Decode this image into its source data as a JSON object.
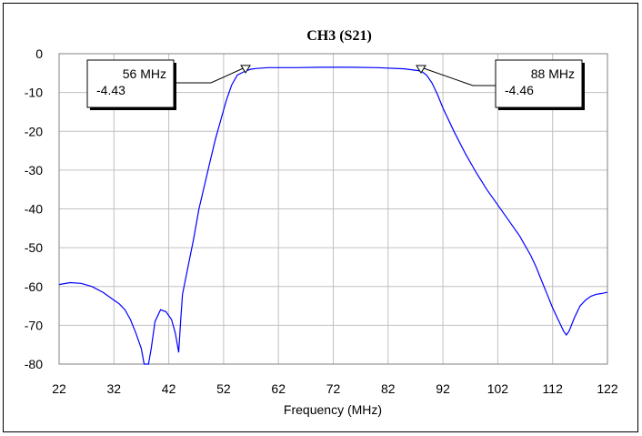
{
  "chart_data": {
    "type": "line",
    "title": "CH3 (S21)",
    "xlabel": "Frequency (MHz)",
    "ylabel": "",
    "xlim": [
      22,
      122
    ],
    "ylim": [
      -80,
      0
    ],
    "grid": true,
    "xticks": [
      "22",
      "32",
      "42",
      "52",
      "62",
      "72",
      "82",
      "92",
      "102",
      "112",
      "122"
    ],
    "yticks": [
      "0",
      "-10",
      "-20",
      "-30",
      "-40",
      "-50",
      "-60",
      "-70",
      "-80"
    ],
    "series": [
      {
        "color": "#0000ff",
        "x": [
          22,
          24,
          26,
          28,
          30,
          32,
          33,
          34,
          35,
          36,
          37,
          37.5,
          38,
          38.3,
          38.8,
          39.5,
          40.5,
          41.5,
          42.5,
          43.2,
          43.8,
          44.2,
          44.5,
          45.5,
          46.5,
          47.5,
          48.5,
          49.5,
          50.5,
          51.5,
          52.5,
          53.5,
          54.5,
          55.5,
          56,
          57,
          58,
          59,
          60,
          62,
          65,
          70,
          75,
          80,
          85,
          88,
          89,
          90,
          91,
          92,
          94,
          96,
          98,
          100,
          102,
          104,
          106,
          108,
          109,
          110,
          111,
          112,
          113,
          114,
          114.5,
          115,
          116,
          117,
          118,
          119,
          120,
          121,
          122
        ],
        "values": [
          -59.5,
          -59,
          -59.2,
          -60,
          -61.5,
          -63.5,
          -64.5,
          -66,
          -68.5,
          -72,
          -76,
          -80,
          -80,
          -80,
          -76,
          -69,
          -66,
          -66.5,
          -68.5,
          -72,
          -77,
          -68,
          -62,
          -55,
          -48,
          -40,
          -34,
          -28,
          -22,
          -17,
          -12,
          -8,
          -5.5,
          -4.8,
          -4.43,
          -4,
          -3.8,
          -3.7,
          -3.6,
          -3.6,
          -3.6,
          -3.5,
          -3.5,
          -3.6,
          -3.9,
          -4.46,
          -5.5,
          -7.5,
          -10.5,
          -14,
          -20,
          -25.5,
          -30.5,
          -35,
          -39,
          -43,
          -47,
          -52,
          -55,
          -58.5,
          -62,
          -65.5,
          -68.5,
          -71.5,
          -72.5,
          -71.5,
          -68,
          -65,
          -63.5,
          -62.5,
          -62,
          -61.8,
          -61.5
        ]
      }
    ],
    "markers": [
      {
        "x": 56,
        "y": -4.43,
        "freq_label": "56 MHz",
        "value_label": "-4.43"
      },
      {
        "x": 88,
        "y": -4.46,
        "freq_label": "88 MHz",
        "value_label": "-4.46"
      }
    ]
  }
}
